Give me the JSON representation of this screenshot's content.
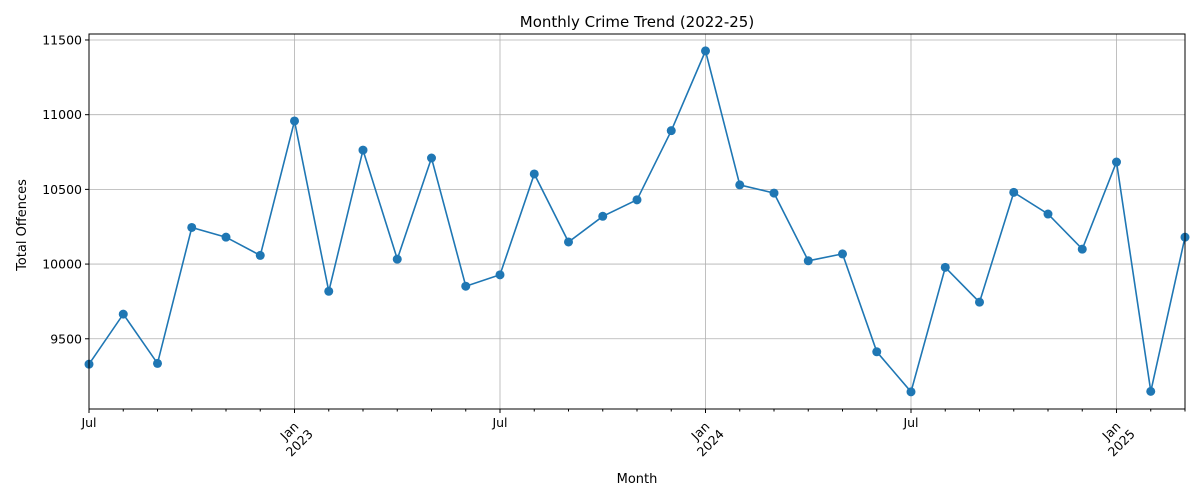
{
  "chart_data": {
    "type": "line",
    "title": "Monthly Crime Trend (2022-25)",
    "xlabel": "Month",
    "ylabel": "Total Offences",
    "grid": true,
    "series_color": "#1f77b4",
    "ylim": [
      9030,
      11540
    ],
    "yticks": [
      9500,
      10000,
      10500,
      11000,
      11500
    ],
    "xlim": [
      0,
      32
    ],
    "x_major_ticks": [
      {
        "pos": 0,
        "line1": "Jul",
        "line2": ""
      },
      {
        "pos": 6,
        "line1": "Jan",
        "line2": "2023"
      },
      {
        "pos": 12,
        "line1": "Jul",
        "line2": ""
      },
      {
        "pos": 18,
        "line1": "Jan",
        "line2": "2024"
      },
      {
        "pos": 24,
        "line1": "Jul",
        "line2": ""
      },
      {
        "pos": 30,
        "line1": "Jan",
        "line2": "2025"
      }
    ],
    "values": [
      9330,
      9665,
      9335,
      10245,
      10180,
      10058,
      10958,
      9818,
      10763,
      10033,
      10710,
      9852,
      9928,
      10603,
      10148,
      10320,
      10430,
      10893,
      11427,
      10530,
      10475,
      10022,
      10068,
      9413,
      9145,
      9978,
      9745,
      10480,
      10335,
      10100,
      10683,
      9148,
      10180
    ]
  }
}
